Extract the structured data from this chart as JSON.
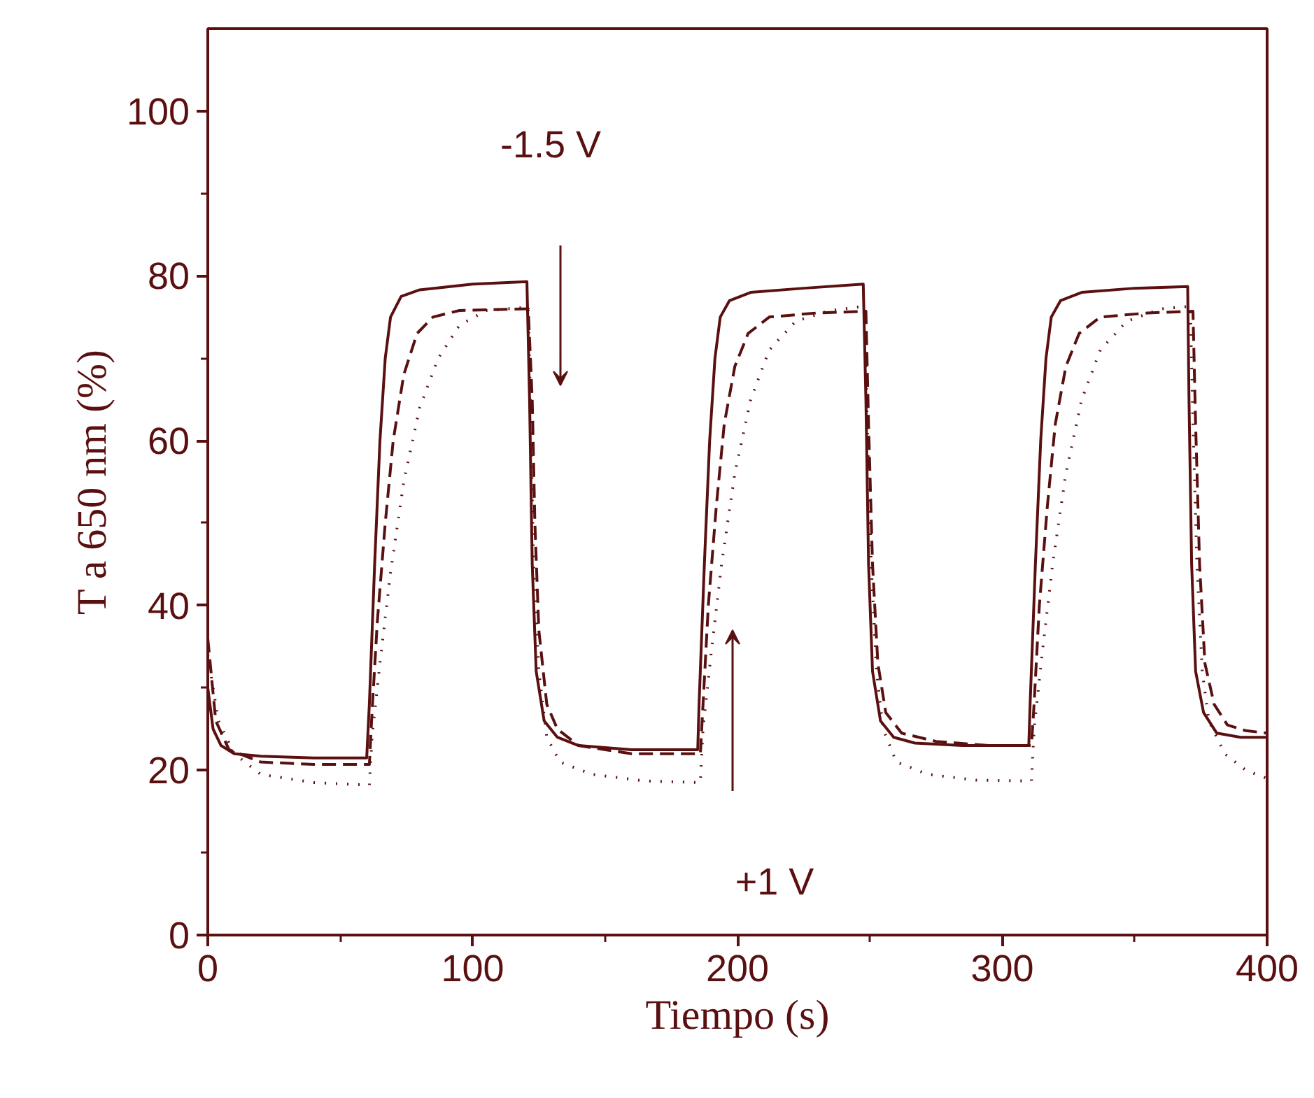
{
  "chart_data": {
    "type": "line",
    "xlabel": "Tiempo (s)",
    "ylabel": "T a 650 nm (%)",
    "xlim": [
      0,
      400
    ],
    "ylim": [
      0,
      110
    ],
    "xticks": [
      0,
      {
        "value": 50,
        "label": null
      },
      100,
      {
        "value": 150,
        "label": null
      },
      200,
      {
        "value": 250,
        "label": null
      },
      300,
      {
        "value": 350,
        "label": null
      },
      400
    ],
    "yticks": [
      0,
      {
        "value": 10,
        "label": null
      },
      20,
      {
        "value": 30,
        "label": null
      },
      40,
      {
        "value": 50,
        "label": null
      },
      60,
      {
        "value": 70,
        "label": null
      },
      80,
      {
        "value": 90,
        "label": null
      },
      100
    ],
    "grid": false,
    "annotations": [
      "-1.5 V",
      "+1 V"
    ],
    "series": [
      {
        "color": "#5a1010",
        "line_style": "solid",
        "x": [
          0,
          2,
          5,
          10,
          20,
          40,
          60,
          61,
          63,
          65,
          67,
          69,
          73,
          80,
          100,
          120.5,
          121.5,
          122.5,
          124,
          127,
          132,
          140,
          160,
          185,
          185.5,
          187.5,
          189.5,
          191.5,
          193.5,
          197,
          205,
          225,
          247.5,
          248.5,
          249.5,
          251,
          254,
          259,
          267,
          285,
          310,
          310.5,
          312.5,
          314.5,
          316.5,
          318.5,
          322,
          330,
          350,
          370,
          370.5,
          371.5,
          373,
          376,
          381,
          390,
          400
        ],
        "values": [
          30,
          25,
          23,
          22,
          21.7,
          21.5,
          21.5,
          28,
          45,
          60,
          70,
          75,
          77.5,
          78.3,
          79,
          79.3,
          65,
          45,
          32,
          26,
          24,
          23,
          22.5,
          22.5,
          28,
          45,
          60,
          70,
          75,
          77,
          78,
          78.5,
          79,
          65,
          45,
          32,
          26,
          24,
          23.3,
          23,
          23,
          28,
          45,
          60,
          70,
          75,
          77,
          78,
          78.5,
          78.7,
          65,
          45,
          32,
          27,
          24.5,
          24,
          24
        ]
      },
      {
        "color": "#5a1010",
        "line_style": "dashed",
        "x": [
          0,
          3,
          8,
          20,
          40,
          61,
          62,
          64,
          67,
          70,
          74,
          79,
          85,
          95,
          121,
          122.5,
          123.5,
          125,
          128,
          132,
          140,
          160,
          186,
          187,
          189,
          192,
          195,
          199,
          204,
          212,
          230,
          248.5,
          249.5,
          251,
          253,
          256,
          262,
          275,
          295,
          311,
          312,
          314,
          317,
          320,
          324,
          329,
          337,
          355,
          372,
          373,
          374.5,
          376.5,
          380,
          385,
          392,
          400
        ],
        "values": [
          36,
          26,
          22.5,
          21,
          20.7,
          20.7,
          27,
          38,
          50,
          60,
          68,
          73,
          75,
          75.8,
          76,
          65,
          50,
          37,
          28,
          25,
          23,
          22,
          22,
          28,
          40,
          52,
          62,
          69,
          73,
          75,
          75.5,
          75.7,
          62,
          45,
          33,
          27,
          24.5,
          23.5,
          23,
          23,
          28,
          40,
          52,
          62,
          69,
          73,
          75,
          75.5,
          75.7,
          62,
          45,
          33,
          28,
          25.5,
          24.8,
          24.5
        ]
      },
      {
        "color": "#5a1010",
        "line_style": "dotted",
        "x": [
          0,
          4,
          10,
          20,
          40,
          61,
          62,
          65,
          69,
          74,
          80,
          87,
          95,
          105,
          121,
          122,
          123,
          125,
          128,
          133,
          145,
          165,
          186,
          187,
          190,
          194,
          199,
          205,
          212,
          222,
          235,
          248,
          249,
          250.5,
          252.5,
          255,
          260,
          272,
          290,
          311,
          312,
          315,
          319,
          324,
          330,
          337,
          347,
          360,
          371,
          372,
          373.5,
          375.5,
          378,
          384,
          392,
          400
        ],
        "values": [
          34,
          26,
          22,
          19.5,
          18.5,
          18.2,
          24,
          33,
          44,
          55,
          64,
          70,
          74,
          75.8,
          76.2,
          62,
          45,
          32,
          24,
          21,
          19.5,
          18.7,
          18.5,
          25,
          34,
          45,
          56,
          65,
          71,
          74.5,
          75.8,
          76.3,
          62,
          45,
          32,
          25,
          21,
          19.5,
          18.8,
          18.7,
          25,
          34,
          45,
          56,
          65,
          71,
          74.5,
          76,
          76.3,
          62,
          45,
          32,
          26,
          22,
          20,
          19
        ]
      }
    ]
  }
}
